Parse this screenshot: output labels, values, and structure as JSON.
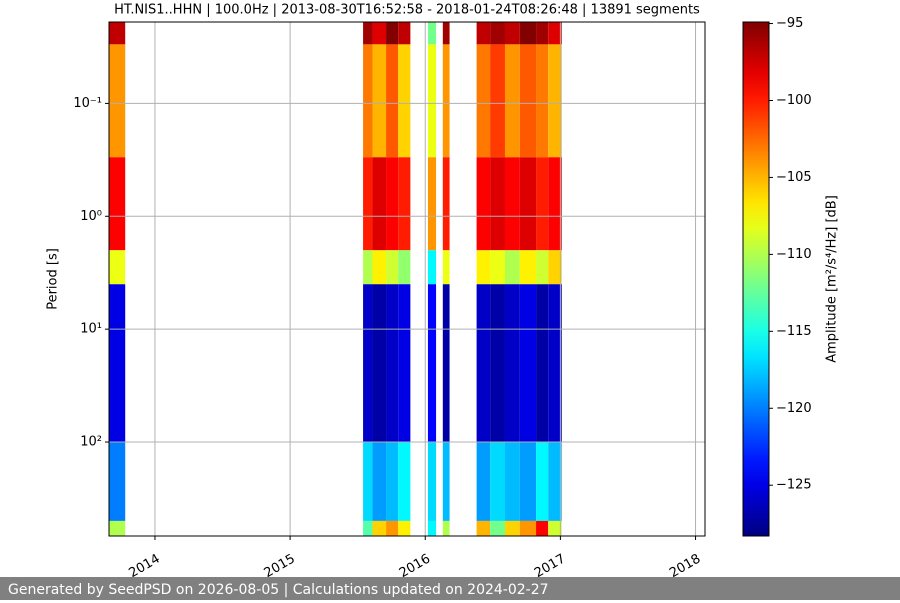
{
  "chart_data": {
    "type": "spectrogram",
    "title": "HT.NIS1..HHN | 100.0Hz | 2013-08-30T16:52:58 - 2018-01-24T08:26:48 | 13891 segments",
    "ylabel": "Period [s]",
    "colorbar_label": "Amplitude [m²/s⁴/Hz] [dB]",
    "xlim": [
      2013.66,
      2018.07
    ],
    "xticks": [
      2014,
      2015,
      2016,
      2017,
      2018
    ],
    "ylim": [
      0.019,
      680
    ],
    "y_log": true,
    "y_inverted": true,
    "yticks": [
      {
        "value": 0.1,
        "label": "10⁻¹"
      },
      {
        "value": 1,
        "label": "10⁰"
      },
      {
        "value": 10,
        "label": "10¹"
      },
      {
        "value": 100,
        "label": "10²"
      }
    ],
    "grid": true,
    "colormap": "jet",
    "clim": [
      -128.3,
      -94.9
    ],
    "cticks": [
      {
        "value": -95,
        "label": "−95"
      },
      {
        "value": -100,
        "label": "−100"
      },
      {
        "value": -105,
        "label": "−105"
      },
      {
        "value": -110,
        "label": "−110"
      },
      {
        "value": -115,
        "label": "−115"
      },
      {
        "value": -120,
        "label": "−120"
      },
      {
        "value": -125,
        "label": "−125"
      }
    ],
    "period_bins": [
      0.019,
      0.03,
      0.3,
      2,
      4,
      100,
      500,
      680
    ],
    "segments": [
      {
        "start": 2013.66,
        "end": 2013.78,
        "amplitude_db": [
          -97,
          -104,
          -99,
          -108,
          -125,
          -120,
          -110
        ]
      },
      {
        "start": 2015.54,
        "end": 2015.61,
        "amplitude_db": [
          -96,
          -103,
          -100,
          -110,
          -126,
          -117,
          -113
        ]
      },
      {
        "start": 2015.61,
        "end": 2015.71,
        "amplitude_db": [
          -98,
          -105,
          -98,
          -107,
          -127,
          -119,
          -106
        ]
      },
      {
        "start": 2015.71,
        "end": 2015.8,
        "amplitude_db": [
          -95,
          -102,
          -99,
          -109,
          -126,
          -118,
          -104
        ]
      },
      {
        "start": 2015.8,
        "end": 2015.89,
        "amplitude_db": [
          -97,
          -106,
          -100,
          -111,
          -125,
          -116,
          -107
        ]
      },
      {
        "start": 2016.02,
        "end": 2016.08,
        "amplitude_db": [
          -112,
          -108,
          -104,
          -116,
          -124,
          -117,
          -116
        ]
      },
      {
        "start": 2016.13,
        "end": 2016.18,
        "amplitude_db": [
          -96,
          -104,
          -100,
          -108,
          -127,
          -118,
          -110
        ]
      },
      {
        "start": 2016.38,
        "end": 2016.48,
        "amplitude_db": [
          -97,
          -103,
          -99,
          -107,
          -126,
          -119,
          -105
        ]
      },
      {
        "start": 2016.48,
        "end": 2016.59,
        "amplitude_db": [
          -96,
          -101,
          -98,
          -108,
          -127,
          -117,
          -112
        ]
      },
      {
        "start": 2016.59,
        "end": 2016.7,
        "amplitude_db": [
          -97,
          -104,
          -99,
          -110,
          -126,
          -118,
          -106
        ]
      },
      {
        "start": 2016.7,
        "end": 2016.82,
        "amplitude_db": [
          -95,
          -102,
          -98,
          -107,
          -125,
          -119,
          -104
        ]
      },
      {
        "start": 2016.82,
        "end": 2016.91,
        "amplitude_db": [
          -96,
          -103,
          -100,
          -109,
          -127,
          -116,
          -99
        ]
      },
      {
        "start": 2016.91,
        "end": 2017.01,
        "amplitude_db": [
          -98,
          -105,
          -99,
          -106,
          -126,
          -118,
          -109
        ]
      }
    ]
  },
  "footer": "Generated by SeedPSD on 2026-08-05 | Calculations updated on 2024-02-27"
}
